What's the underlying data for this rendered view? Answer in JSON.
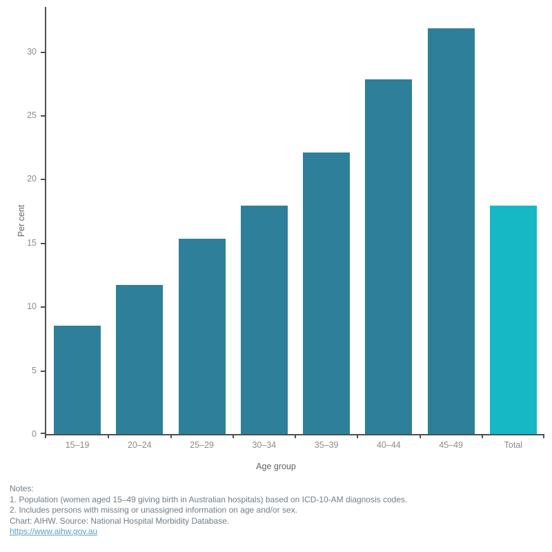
{
  "chart_data": {
    "type": "bar",
    "title": "",
    "categories": [
      "15–19",
      "20–24",
      "25–29",
      "30–34",
      "35–39",
      "40–44",
      "45–49",
      "Total"
    ],
    "values": [
      8.5,
      11.7,
      15.3,
      17.9,
      22.1,
      27.8,
      31.8,
      17.9
    ],
    "xlabel": "Age group",
    "ylabel": "Per cent",
    "ylim": [
      0,
      33.5
    ],
    "yticks": [
      0,
      5,
      10,
      15,
      20,
      25,
      30
    ],
    "grid": false,
    "legend": "none",
    "bar_color": "#2e7f99",
    "highlight_category": "Total",
    "highlight_color": "#16b8c5"
  },
  "footer": {
    "notes_heading": "Notes:",
    "notes": [
      "1. Population (women aged 15–49 giving birth in Australian hospitals) based on ICD-10-AM diagnosis codes.",
      "2. Includes persons with missing or unassigned information on age and/or sex."
    ],
    "attribution": "Chart: AIHW. Source: National Hospital Morbidity Database.",
    "link": "https://www.aihw.gov.au",
    "link_color": "#5b9ec9"
  }
}
